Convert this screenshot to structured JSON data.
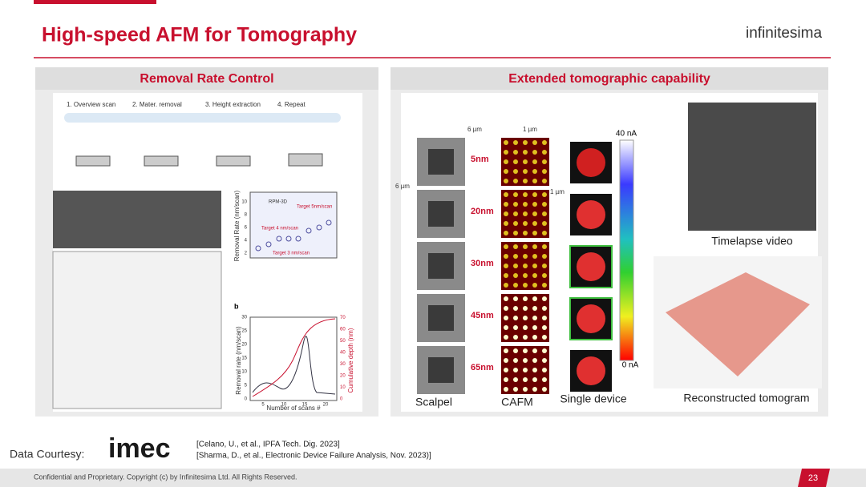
{
  "header": {
    "title": "High-speed AFM for Tomography",
    "logo": "infinitesima"
  },
  "left_panel": {
    "title": "Removal Rate Control",
    "steps": [
      "1. Overview scan",
      "2. Mater. removal",
      "3. Height extraction",
      "4. Repeat"
    ],
    "chart_a": {
      "y_label": "Removal Rate (nm/scan)",
      "legend": "RPM-3D",
      "annotations": [
        "Target 5nm/scan",
        "Target 4 nm/scan",
        "Target 3 nm/scan"
      ],
      "yticks": [
        "2",
        "4",
        "6",
        "8",
        "10"
      ]
    },
    "chart_b": {
      "panel": "b",
      "y_label": "Removal rate (nm/scan)",
      "y2_label": "Cumulative depth (nm)",
      "x_label": "Number of scans #",
      "xticks": [
        "5",
        "10",
        "15",
        "20"
      ],
      "yticks": [
        "0",
        "5",
        "10",
        "15",
        "20",
        "25",
        "30"
      ],
      "y2ticks": [
        "0",
        "10",
        "20",
        "30",
        "40",
        "50",
        "60",
        "70"
      ]
    }
  },
  "right_panel": {
    "title": "Extended tomographic capability",
    "dimensions": [
      "6 µm",
      "1 µm",
      "6 µm",
      "1 µm"
    ],
    "depths": [
      "5nm",
      "20nm",
      "30nm",
      "45nm",
      "65nm"
    ],
    "colorbar": [
      "40 nA",
      "0 nA"
    ],
    "captions": [
      "Scalpel",
      "CAFM",
      "Single device",
      "Timelapse video",
      "Reconstructed tomogram"
    ]
  },
  "courtesy": {
    "label": "Data Courtesy:",
    "logo": "imec",
    "references": [
      "[Celano, U., et al., IPFA Tech. Dig. 2023]",
      "[Sharma, D., et al., Electronic Device Failure Analysis, Nov. 2023)]"
    ]
  },
  "footer": {
    "text": "Confidential and Proprietary. Copyright (c) by Infinitesima Ltd. All Rights Reserved.",
    "page": "23"
  }
}
